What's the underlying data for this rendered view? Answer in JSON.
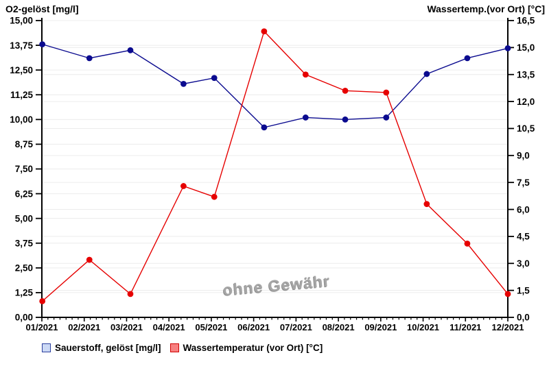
{
  "watermark": "ohne Gewähr",
  "legend": {
    "items": [
      {
        "label": "Sauerstoff, gelöst [mg/l]",
        "fill": "#ccd9f5",
        "border": "#2b3f9e"
      },
      {
        "label": "Wassertemperatur (vor Ort) [°C]",
        "fill": "#f78080",
        "border": "#d00000"
      }
    ]
  },
  "chart_data": {
    "type": "line",
    "grid": true,
    "legend_position": "bottom",
    "x_axis": {
      "categories": [
        "01/2021",
        "02/2021",
        "03/2021",
        "04/2021",
        "05/2021",
        "06/2021",
        "07/2021",
        "08/2021",
        "09/2021",
        "10/2021",
        "11/2021",
        "12/2021"
      ],
      "minor_ticks_per_interval": 6
    },
    "left_axis": {
      "title": "O2-gelöst [mg/l]",
      "min": 0,
      "max": 15,
      "step": 1.25,
      "decimals": 2
    },
    "right_axis": {
      "title": "Wassertemp.(vor Ort) [°C]",
      "min": 0,
      "max": 16.5,
      "step": 1.5,
      "decimals": 1
    },
    "series": [
      {
        "name": "Sauerstoff, gelöst [mg/l]",
        "axis": "left",
        "color": "#0b0b8f",
        "x_frac": [
          0.001,
          0.102,
          0.19,
          0.304,
          0.37,
          0.477,
          0.566,
          0.651,
          0.739,
          0.826,
          0.913,
          1.0
        ],
        "values": [
          13.8,
          13.1,
          13.5,
          11.8,
          12.1,
          9.6,
          10.1,
          10.0,
          10.1,
          12.3,
          13.1,
          13.6
        ]
      },
      {
        "name": "Wassertemperatur (vor Ort) [°C]",
        "axis": "right",
        "color": "#e60000",
        "x_frac": [
          0.001,
          0.102,
          0.19,
          0.304,
          0.37,
          0.477,
          0.566,
          0.651,
          0.739,
          0.826,
          0.913,
          1.0
        ],
        "values": [
          0.9,
          3.2,
          1.3,
          7.3,
          6.7,
          15.9,
          13.5,
          12.6,
          12.5,
          6.3,
          4.1,
          1.3
        ]
      }
    ]
  }
}
